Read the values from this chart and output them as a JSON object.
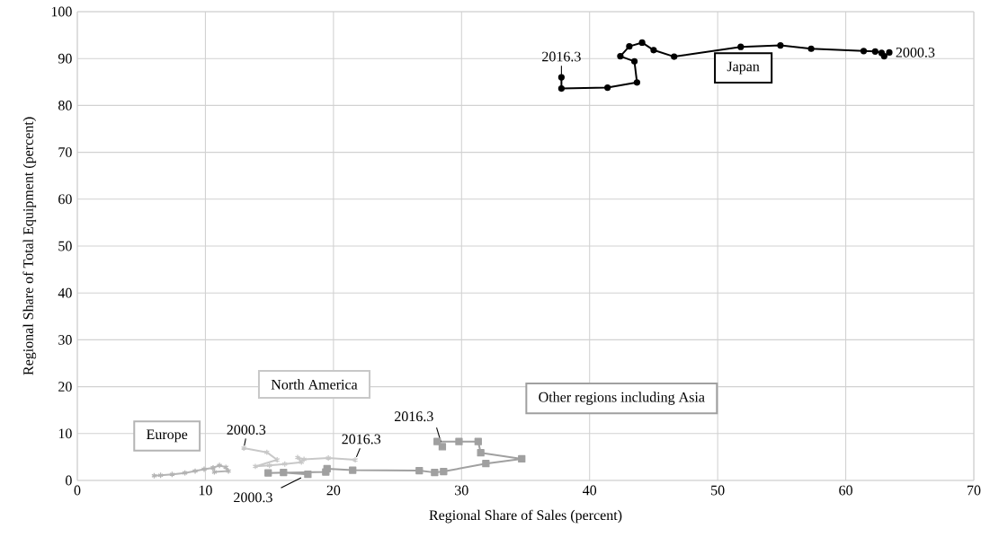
{
  "chart_data": {
    "type": "line",
    "xlabel": "Regional Share of Sales (percent)",
    "ylabel": "Regional Share of  Total Equipment (percent)",
    "xlim": [
      0,
      70
    ],
    "xticks": [
      0,
      10,
      20,
      30,
      40,
      50,
      60,
      70
    ],
    "ylim": [
      0,
      100
    ],
    "yticks": [
      0,
      10,
      20,
      30,
      40,
      50,
      60,
      70,
      80,
      90,
      100
    ],
    "grid": true,
    "series": [
      {
        "name": "Japan",
        "color": "#000000",
        "marker": "circle",
        "x": [
          63.4,
          63.0,
          62.8,
          62.3,
          61.4,
          57.3,
          54.9,
          51.8,
          46.6,
          45.0,
          44.1,
          43.1,
          42.4,
          43.5,
          43.7,
          41.4,
          37.8,
          37.8
        ],
        "values": [
          91.3,
          90.5,
          91.2,
          91.5,
          91.6,
          92.1,
          92.8,
          92.5,
          90.4,
          91.8,
          93.4,
          92.6,
          90.5,
          89.4,
          84.9,
          83.8,
          83.6,
          86.0
        ]
      },
      {
        "name": "Other regions including Asia",
        "color": "#a0a0a0",
        "marker": "square",
        "x": [
          18.0,
          16.1,
          14.9,
          19.4,
          19.5,
          21.5,
          26.7,
          27.9,
          28.6,
          31.9,
          34.7,
          31.5,
          31.3,
          29.8,
          28.1,
          28.5
        ],
        "values": [
          1.3,
          1.7,
          1.6,
          1.8,
          2.5,
          2.2,
          2.1,
          1.7,
          1.9,
          3.6,
          4.6,
          5.9,
          8.3,
          8.3,
          8.3,
          7.2
        ]
      },
      {
        "name": "North America",
        "color": "#c8c8c8",
        "marker": "cross",
        "x": [
          13.0,
          14.8,
          15.6,
          13.9,
          15.0,
          16.2,
          17.5,
          17.2,
          17.7,
          19.6,
          21.7
        ],
        "values": [
          6.9,
          6.0,
          4.4,
          3.0,
          3.2,
          3.5,
          3.9,
          4.9,
          4.5,
          4.8,
          4.4
        ]
      },
      {
        "name": "Europe",
        "color": "#b4b4b4",
        "marker": "cross",
        "x": [
          6.0,
          6.5,
          7.4,
          8.4,
          9.2,
          9.9,
          10.6,
          11.1,
          11.6,
          11.8,
          10.7
        ],
        "values": [
          1.0,
          1.1,
          1.3,
          1.6,
          2.0,
          2.4,
          2.7,
          3.2,
          2.8,
          2.0,
          1.8
        ]
      }
    ],
    "annotations": [
      {
        "text": "2016.3",
        "x": 37.8,
        "y": 86.0
      },
      {
        "text": "2000.3",
        "x": 63.4,
        "y": 91.3
      },
      {
        "text": "2016.3",
        "x": 28.5,
        "y": 7.2
      },
      {
        "text": "2000.3",
        "x": 18.0,
        "y": 1.3
      },
      {
        "text": "2000.3",
        "x": 13.0,
        "y": 6.9
      },
      {
        "text": "2016.3",
        "x": 21.7,
        "y": 4.4
      }
    ]
  }
}
